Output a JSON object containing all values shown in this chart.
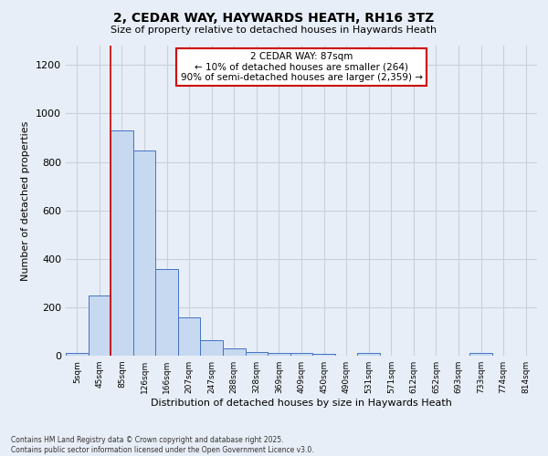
{
  "title": "2, CEDAR WAY, HAYWARDS HEATH, RH16 3TZ",
  "subtitle": "Size of property relative to detached houses in Haywards Heath",
  "xlabel": "Distribution of detached houses by size in Haywards Heath",
  "ylabel": "Number of detached properties",
  "bar_labels": [
    "5sqm",
    "45sqm",
    "85sqm",
    "126sqm",
    "166sqm",
    "207sqm",
    "247sqm",
    "288sqm",
    "328sqm",
    "369sqm",
    "409sqm",
    "450sqm",
    "490sqm",
    "531sqm",
    "571sqm",
    "612sqm",
    "652sqm",
    "693sqm",
    "733sqm",
    "774sqm",
    "814sqm"
  ],
  "bar_values": [
    10,
    248,
    930,
    848,
    358,
    160,
    65,
    30,
    15,
    12,
    12,
    8,
    0,
    12,
    0,
    0,
    0,
    0,
    12,
    0,
    0
  ],
  "bar_color": "#c6d9f0",
  "bar_edge_color": "#4472c4",
  "ylim": [
    0,
    1280
  ],
  "yticks": [
    0,
    200,
    400,
    600,
    800,
    1000,
    1200
  ],
  "property_line_x": 2.0,
  "annotation_text_line1": "2 CEDAR WAY: 87sqm",
  "annotation_text_line2": "← 10% of detached houses are smaller (264)",
  "annotation_text_line3": "90% of semi-detached houses are larger (2,359) →",
  "annotation_box_color": "#ffffff",
  "annotation_border_color": "#cc0000",
  "vline_color": "#cc0000",
  "grid_color": "#c8d0dc",
  "background_color": "#e8eef7",
  "footer_line1": "Contains HM Land Registry data © Crown copyright and database right 2025.",
  "footer_line2": "Contains public sector information licensed under the Open Government Licence v3.0."
}
